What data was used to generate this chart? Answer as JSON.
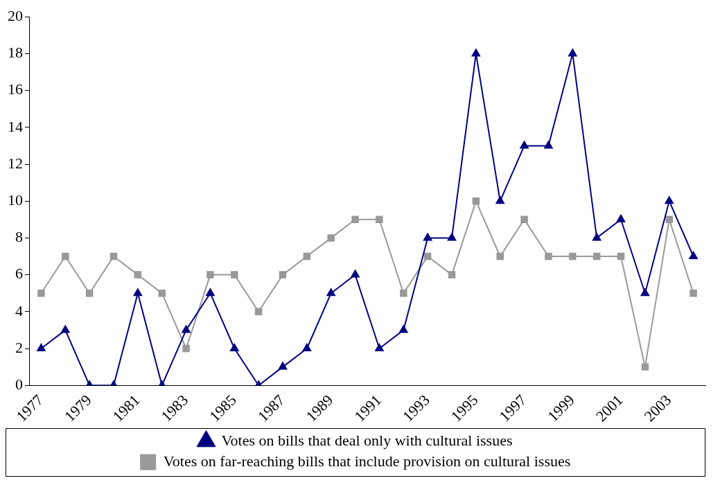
{
  "chart_data": {
    "type": "line",
    "categories": [
      "1977",
      null,
      "1979",
      null,
      "1981",
      null,
      "1983",
      null,
      "1985",
      null,
      "1987",
      null,
      "1989",
      null,
      "1991",
      null,
      "1993",
      null,
      "1995",
      null,
      "1997",
      null,
      "1999",
      null,
      "2001",
      null,
      "2003",
      null
    ],
    "series": [
      {
        "name": "Votes on bills that deal only with cultural issues",
        "color": "#000080",
        "marker": "triangle",
        "values": [
          2,
          3,
          0,
          0,
          5,
          0,
          3,
          5,
          2,
          0,
          1,
          2,
          5,
          6,
          2,
          3,
          8,
          8,
          18,
          10,
          13,
          13,
          18,
          8,
          9,
          5,
          10,
          7
        ]
      },
      {
        "name": "Votes on far-reaching bills that include provision on cultural issues",
        "color": "#999999",
        "marker": "square",
        "values": [
          5,
          7,
          5,
          7,
          6,
          5,
          2,
          6,
          6,
          4,
          6,
          7,
          8,
          9,
          9,
          5,
          7,
          6,
          10,
          7,
          9,
          7,
          7,
          7,
          7,
          1,
          9,
          5
        ]
      }
    ],
    "ylim": [
      0,
      20
    ],
    "yticks": [
      0,
      2,
      4,
      6,
      8,
      10,
      12,
      14,
      16,
      18,
      20
    ],
    "grid": false,
    "legend": "bottom",
    "line_style": "solid"
  }
}
